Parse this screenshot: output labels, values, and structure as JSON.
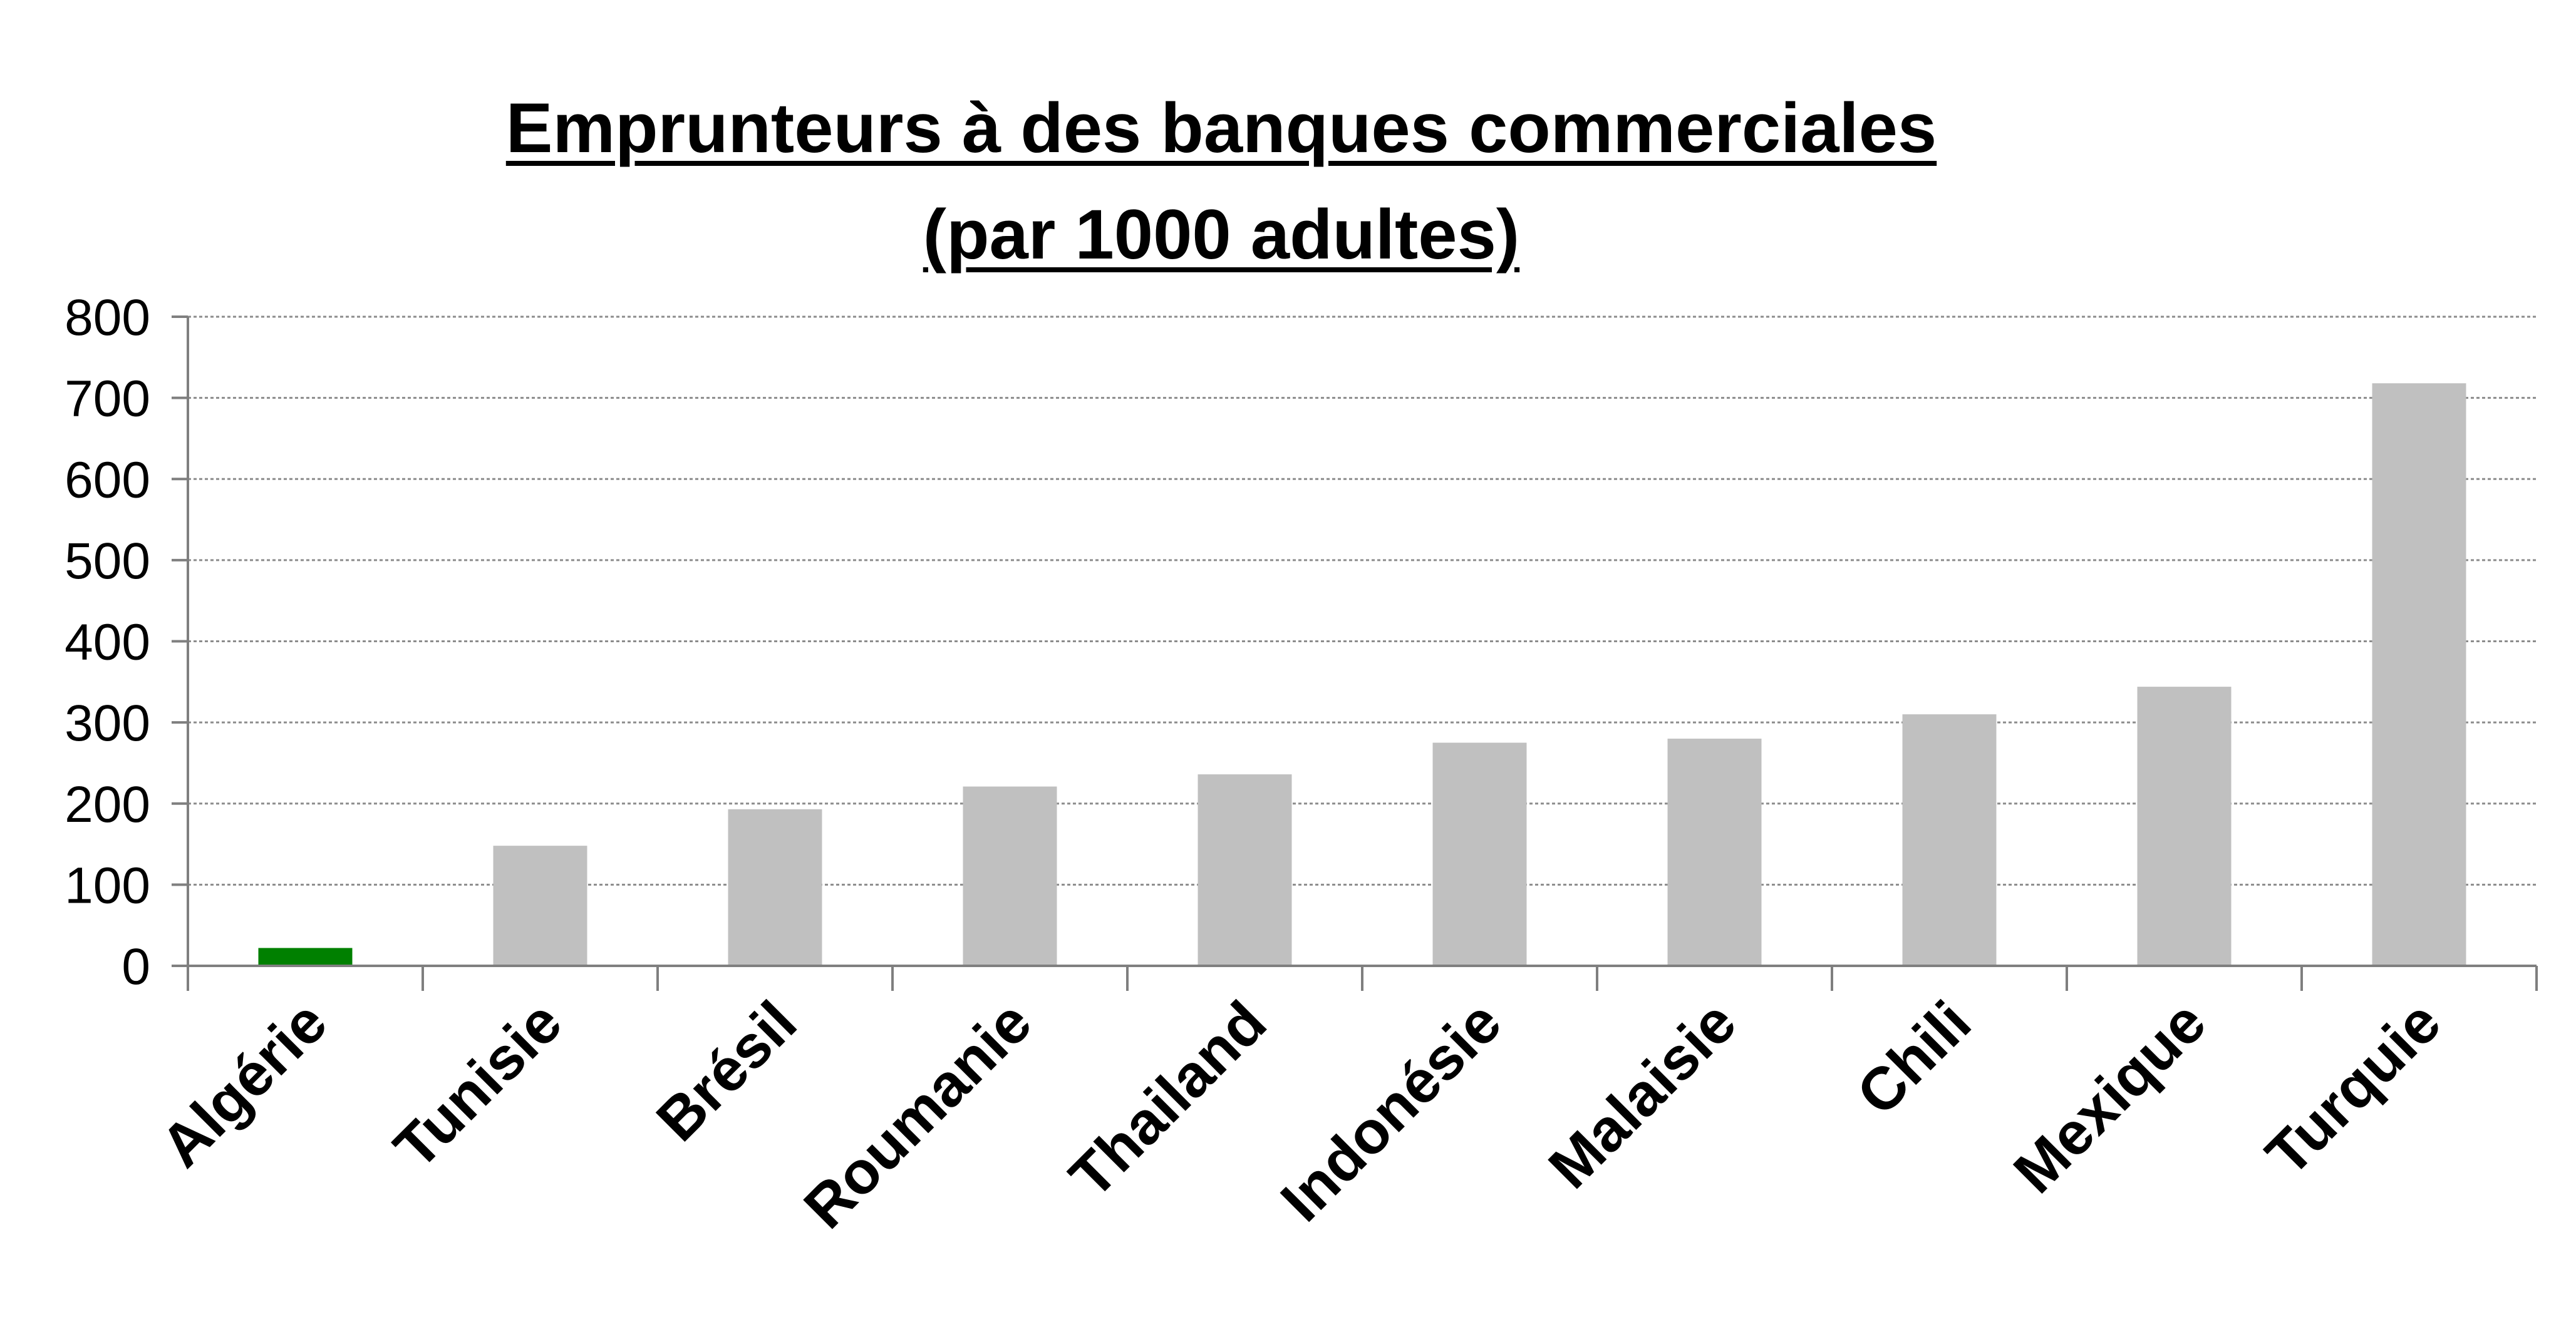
{
  "chart_data": {
    "type": "bar",
    "title": "Emprunteurs à des banques commerciales",
    "subtitle": "(par 1000 adultes)",
    "categories": [
      "Algérie",
      "Tunisie",
      "Brésil",
      "Roumanie",
      "Thailand",
      "Indonésie",
      "Malaisie",
      "Chili",
      "Mexique",
      "Turquie"
    ],
    "values": [
      22,
      148,
      193,
      221,
      236,
      275,
      280,
      310,
      344,
      718
    ],
    "ylim": [
      0,
      800
    ],
    "yticks": [
      "0",
      "100",
      "200",
      "300",
      "400",
      "500",
      "600",
      "700",
      "800"
    ],
    "ytick_values": [
      0,
      100,
      200,
      300,
      400,
      500,
      600,
      700,
      800
    ],
    "grid": true,
    "colors": {
      "highlight": "#008000",
      "default": "#c0c0c0",
      "axis": "#7f7f7f",
      "grid": "#8c8c8c"
    },
    "highlight_index": 0
  }
}
